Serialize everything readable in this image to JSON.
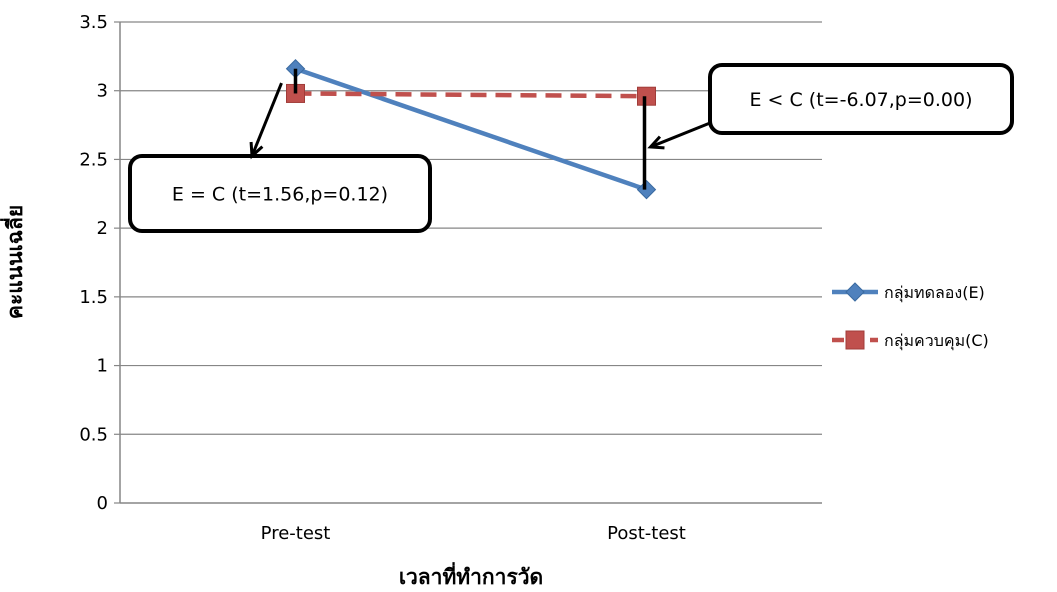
{
  "chart_data": {
    "type": "line",
    "categories": [
      "Pre-test",
      "Post-test"
    ],
    "xlabel": "เวลาที่ทำการวัด",
    "ylabel": "คะแนนเฉลี่ย",
    "ylim": [
      0,
      3.5
    ],
    "yticks": [
      0,
      0.5,
      1,
      1.5,
      2,
      2.5,
      3,
      3.5
    ],
    "grid": true,
    "legend_position": "right",
    "series": [
      {
        "name": "กลุ่มทดลอง(E)",
        "values": [
          3.16,
          2.28
        ],
        "color": "#4f81bd",
        "marker": "diamond",
        "dash": "solid"
      },
      {
        "name": "กลุ่มควบคุม(C)",
        "values": [
          2.98,
          2.96
        ],
        "color": "#c0504d",
        "marker": "square",
        "dash": "dashed"
      }
    ],
    "annotations": [
      {
        "text": "E = C (t=1.56,p=0.12)",
        "category": "Pre-test"
      },
      {
        "text": "E < C (t=-6.07,p=0.00)",
        "category": "Post-test"
      }
    ]
  }
}
